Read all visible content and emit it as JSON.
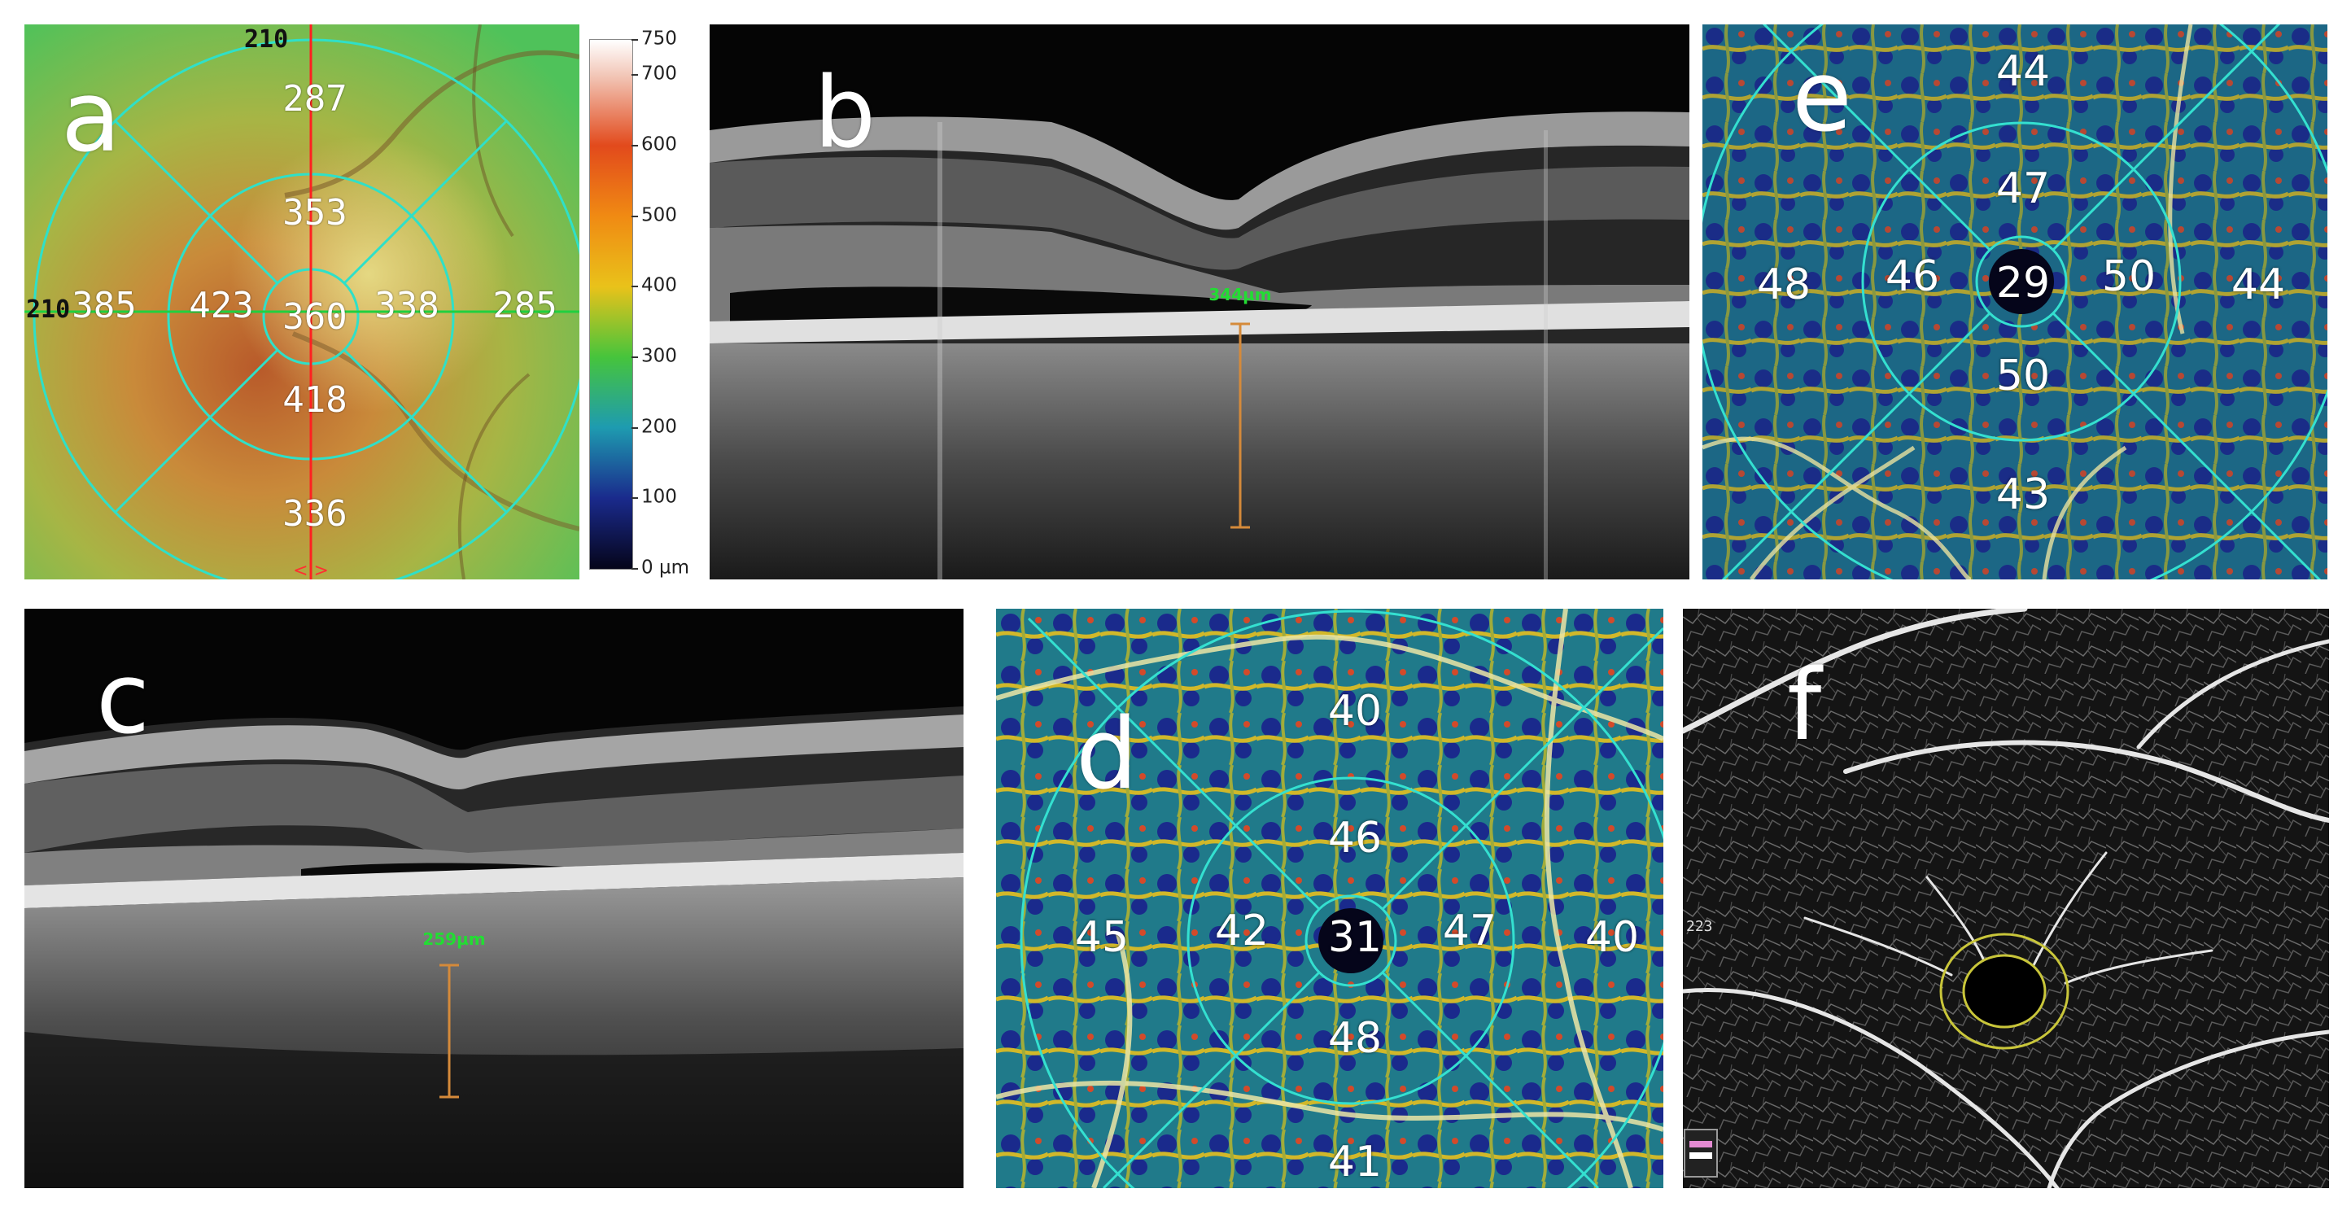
{
  "panels": {
    "a": {
      "letter": "a",
      "axis_labels": {
        "top": "210",
        "left": "210"
      },
      "grid_values": {
        "outer_superior": "287",
        "inner_superior": "353",
        "outer_nasal": "385",
        "inner_nasal": "423",
        "central": "360",
        "inner_temporal": "338",
        "outer_temporal": "285",
        "inner_inferior": "418",
        "outer_inferior": "336"
      },
      "colorbar": {
        "ticks": [
          "750",
          "700",
          "600",
          "500",
          "400",
          "300",
          "200",
          "100",
          "0 µm"
        ],
        "tick_values": [
          750,
          700,
          600,
          500,
          400,
          300,
          200,
          100,
          0
        ],
        "colors": [
          "#ffffff",
          "#f2c7b8",
          "#e24a1c",
          "#f08a13",
          "#e9c21a",
          "#46c43c",
          "#1e9bb0",
          "#1a2a8c",
          "#05051a"
        ]
      }
    },
    "b": {
      "letter": "b",
      "measurement": "344µm"
    },
    "c": {
      "letter": "c",
      "measurement": "259µm"
    },
    "d": {
      "letter": "d",
      "vessel_density": {
        "outer_superior": "40",
        "inner_superior": "46",
        "outer_nasal": "45",
        "inner_nasal": "42",
        "central": "31",
        "inner_temporal": "47",
        "outer_temporal": "40",
        "inner_inferior": "48",
        "outer_inferior": "41"
      }
    },
    "e": {
      "letter": "e",
      "vessel_density": {
        "outer_superior": "44",
        "inner_superior": "47",
        "outer_nasal": "48",
        "inner_nasal": "46",
        "central": "29",
        "inner_temporal": "50",
        "outer_temporal": "44",
        "inner_inferior": "50",
        "outer_inferior": "43"
      }
    },
    "f": {
      "letter": "f",
      "side_code": "223"
    }
  }
}
